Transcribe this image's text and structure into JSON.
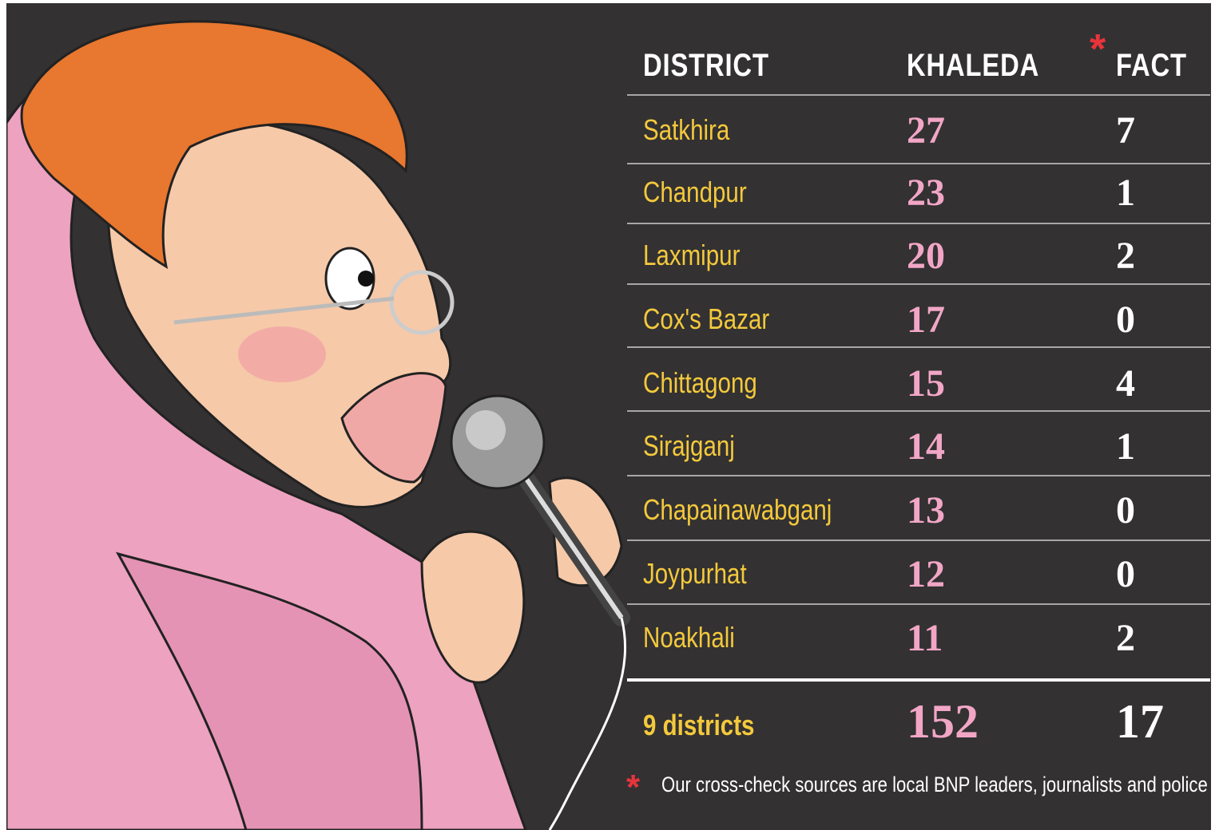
{
  "table": {
    "columns": [
      "DISTRICT",
      "KHALEDA",
      "FACT"
    ],
    "fact_marker": "*",
    "rows": [
      [
        "Satkhira",
        27,
        7
      ],
      [
        "Chandpur",
        23,
        1
      ],
      [
        "Laxmipur",
        20,
        2
      ],
      [
        "Cox's Bazar",
        17,
        0
      ],
      [
        "Chittagong",
        15,
        4
      ],
      [
        "Sirajganj",
        14,
        1
      ],
      [
        "Chapainawabganj",
        13,
        0
      ],
      [
        "Joypurhat",
        12,
        0
      ],
      [
        "Noakhali",
        11,
        2
      ]
    ],
    "total": [
      "9 districts",
      152,
      17
    ]
  },
  "footnote": {
    "marker": "*",
    "text": "Our cross-check sources are local BNP leaders, journalists and police"
  }
}
